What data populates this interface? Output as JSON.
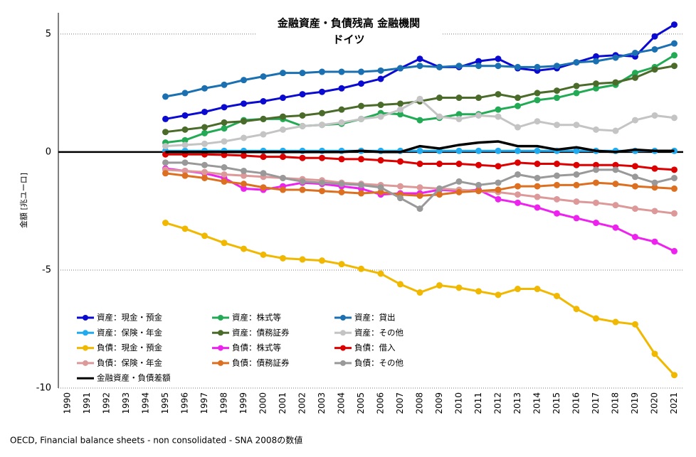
{
  "chart_data": {
    "type": "line",
    "title": "金融資産・負債残高 金融機関",
    "subtitle": "ドイツ",
    "y_label": "金額 [兆ユーロ]",
    "source": "OECD, Financial balance sheets - non consolidated - SNA 2008の数値",
    "categories": [
      "1990",
      "1991",
      "1992",
      "1993",
      "1994",
      "1995",
      "1996",
      "1997",
      "1998",
      "1999",
      "2000",
      "2001",
      "2002",
      "2003",
      "2004",
      "2005",
      "2006",
      "2007",
      "2008",
      "2009",
      "2010",
      "2011",
      "2012",
      "2013",
      "2014",
      "2015",
      "2016",
      "2017",
      "2018",
      "2019",
      "2020",
      "2021"
    ],
    "ylim": [
      -10,
      5.9
    ],
    "yticks": [
      -10,
      -5,
      0,
      5
    ],
    "grid": true,
    "series": [
      {
        "name": "資産：現金・預金",
        "color": "#0a0ad0",
        "values": [
          null,
          null,
          null,
          null,
          null,
          1.4,
          1.55,
          1.7,
          1.9,
          2.05,
          2.15,
          2.3,
          2.45,
          2.55,
          2.7,
          2.9,
          3.1,
          3.55,
          3.95,
          3.6,
          3.6,
          3.85,
          3.95,
          3.55,
          3.45,
          3.55,
          3.8,
          4.05,
          4.1,
          4.05,
          4.9,
          5.4
        ]
      },
      {
        "name": "資産：株式等",
        "color": "#22aa55",
        "values": [
          null,
          null,
          null,
          null,
          null,
          0.4,
          0.5,
          0.8,
          1.0,
          1.35,
          1.4,
          1.4,
          1.1,
          1.15,
          1.2,
          1.4,
          1.65,
          1.6,
          1.35,
          1.45,
          1.6,
          1.6,
          1.8,
          1.95,
          2.2,
          2.3,
          2.5,
          2.7,
          2.85,
          3.35,
          3.6,
          4.1
        ]
      },
      {
        "name": "資産：貸出",
        "color": "#1a70b0",
        "values": [
          null,
          null,
          null,
          null,
          null,
          2.35,
          2.5,
          2.7,
          2.85,
          3.05,
          3.2,
          3.35,
          3.35,
          3.4,
          3.4,
          3.4,
          3.45,
          3.55,
          3.65,
          3.6,
          3.65,
          3.65,
          3.65,
          3.6,
          3.6,
          3.65,
          3.8,
          3.85,
          4.0,
          4.2,
          4.35,
          4.6
        ]
      },
      {
        "name": "資産：保険・年金",
        "color": "#22aaee",
        "values": [
          null,
          null,
          null,
          null,
          null,
          0.05,
          0.05,
          0.05,
          0.05,
          0.05,
          0.05,
          0.05,
          0.05,
          0.05,
          0.05,
          0.05,
          0.05,
          0.05,
          0.05,
          0.05,
          0.05,
          0.05,
          0.05,
          0.05,
          0.05,
          0.05,
          0.05,
          0.05,
          0.05,
          0.05,
          0.05,
          0.05
        ]
      },
      {
        "name": "資産：債務証券",
        "color": "#4a6b2a",
        "values": [
          null,
          null,
          null,
          null,
          null,
          0.85,
          0.95,
          1.05,
          1.25,
          1.3,
          1.4,
          1.5,
          1.55,
          1.65,
          1.8,
          1.95,
          2.0,
          2.05,
          2.15,
          2.3,
          2.3,
          2.3,
          2.45,
          2.3,
          2.5,
          2.6,
          2.8,
          2.9,
          2.95,
          3.15,
          3.5,
          3.65
        ]
      },
      {
        "name": "資産：その他",
        "color": "#c4c4c4",
        "values": [
          null,
          null,
          null,
          null,
          null,
          0.25,
          0.3,
          0.35,
          0.45,
          0.6,
          0.75,
          0.95,
          1.1,
          1.15,
          1.25,
          1.4,
          1.5,
          1.8,
          2.25,
          1.5,
          1.4,
          1.55,
          1.5,
          1.05,
          1.3,
          1.15,
          1.15,
          0.95,
          0.9,
          1.35,
          1.55,
          1.45
        ]
      },
      {
        "name": "負債：現金・預金",
        "color": "#f0b800",
        "values": [
          null,
          null,
          null,
          null,
          null,
          -3.0,
          -3.25,
          -3.55,
          -3.85,
          -4.1,
          -4.35,
          -4.5,
          -4.55,
          -4.6,
          -4.75,
          -4.95,
          -5.15,
          -5.6,
          -5.95,
          -5.65,
          -5.75,
          -5.9,
          -6.05,
          -5.8,
          -5.8,
          -6.1,
          -6.65,
          -7.05,
          -7.2,
          -7.3,
          -8.55,
          -9.45
        ]
      },
      {
        "name": "負債：株式等",
        "color": "#ee22ee",
        "values": [
          null,
          null,
          null,
          null,
          null,
          -0.7,
          -0.8,
          -0.9,
          -1.1,
          -1.55,
          -1.6,
          -1.45,
          -1.3,
          -1.35,
          -1.45,
          -1.55,
          -1.8,
          -1.75,
          -1.75,
          -1.6,
          -1.65,
          -1.6,
          -2.0,
          -2.15,
          -2.35,
          -2.6,
          -2.8,
          -3.0,
          -3.2,
          -3.6,
          -3.8,
          -4.2
        ]
      },
      {
        "name": "負債：借入",
        "color": "#dd0000",
        "values": [
          null,
          null,
          null,
          null,
          null,
          -0.1,
          -0.1,
          -0.1,
          -0.12,
          -0.15,
          -0.2,
          -0.2,
          -0.25,
          -0.25,
          -0.3,
          -0.3,
          -0.35,
          -0.4,
          -0.5,
          -0.5,
          -0.5,
          -0.55,
          -0.6,
          -0.45,
          -0.5,
          -0.5,
          -0.55,
          -0.55,
          -0.55,
          -0.6,
          -0.7,
          -0.75
        ]
      },
      {
        "name": "負債：保険・年金",
        "color": "#dd9999",
        "values": [
          null,
          null,
          null,
          null,
          null,
          -0.75,
          -0.8,
          -0.85,
          -0.95,
          -1.0,
          -1.05,
          -1.1,
          -1.15,
          -1.2,
          -1.3,
          -1.35,
          -1.4,
          -1.45,
          -1.5,
          -1.55,
          -1.6,
          -1.65,
          -1.7,
          -1.8,
          -1.9,
          -2.0,
          -2.1,
          -2.15,
          -2.25,
          -2.4,
          -2.5,
          -2.6
        ]
      },
      {
        "name": "負債：債務証券",
        "color": "#dd7020",
        "values": [
          null,
          null,
          null,
          null,
          null,
          -0.9,
          -1.0,
          -1.1,
          -1.25,
          -1.35,
          -1.5,
          -1.6,
          -1.6,
          -1.65,
          -1.7,
          -1.75,
          -1.7,
          -1.8,
          -1.85,
          -1.8,
          -1.7,
          -1.65,
          -1.6,
          -1.45,
          -1.45,
          -1.4,
          -1.4,
          -1.3,
          -1.35,
          -1.45,
          -1.5,
          -1.55
        ]
      },
      {
        "name": "負債：その他",
        "color": "#999999",
        "values": [
          null,
          null,
          null,
          null,
          null,
          -0.45,
          -0.45,
          -0.55,
          -0.65,
          -0.8,
          -0.9,
          -1.1,
          -1.25,
          -1.3,
          -1.35,
          -1.4,
          -1.5,
          -1.95,
          -2.4,
          -1.55,
          -1.25,
          -1.4,
          -1.3,
          -0.95,
          -1.1,
          -1.0,
          -0.95,
          -0.75,
          -0.75,
          -1.05,
          -1.3,
          -1.1
        ]
      },
      {
        "name": "金融資産・負債差額",
        "color": "#000000",
        "marker": false,
        "values": [
          null,
          null,
          null,
          null,
          null,
          0,
          0,
          0,
          0,
          0,
          0,
          0,
          0,
          0,
          0,
          0.05,
          0,
          0,
          0.25,
          0.15,
          0.3,
          0.4,
          0.45,
          0.25,
          0.25,
          0.1,
          0.2,
          0.05,
          0,
          0.1,
          0.05,
          0.05
        ]
      }
    ]
  }
}
